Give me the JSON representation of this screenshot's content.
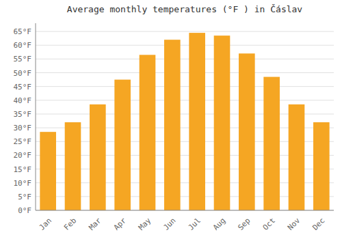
{
  "chart_data": {
    "type": "bar",
    "title": "Average monthly temperatures (°F ) in Čáslav",
    "categories": [
      "Jan",
      "Feb",
      "Mar",
      "Apr",
      "May",
      "Jun",
      "Jul",
      "Aug",
      "Sep",
      "Oct",
      "Nov",
      "Dec"
    ],
    "values": [
      28.5,
      32.0,
      38.5,
      47.5,
      56.5,
      62.0,
      64.5,
      63.5,
      57.0,
      48.5,
      38.5,
      32.0
    ],
    "color": "#F5A623",
    "ylim": [
      0,
      68
    ],
    "yticks": [
      {
        "value": 0,
        "label": "0°F"
      },
      {
        "value": 5,
        "label": "5°F"
      },
      {
        "value": 10,
        "label": "10°F"
      },
      {
        "value": 15,
        "label": "15°F"
      },
      {
        "value": 20,
        "label": "20°F"
      },
      {
        "value": 25,
        "label": "25°F"
      },
      {
        "value": 30,
        "label": "30°F"
      },
      {
        "value": 35,
        "label": "35°F"
      },
      {
        "value": 40,
        "label": "40°F"
      },
      {
        "value": 45,
        "label": "45°F"
      },
      {
        "value": 50,
        "label": "50°F"
      },
      {
        "value": 55,
        "label": "55°F"
      },
      {
        "value": 60,
        "label": "60°F"
      },
      {
        "value": 65,
        "label": "65°F"
      }
    ],
    "grid": true
  }
}
